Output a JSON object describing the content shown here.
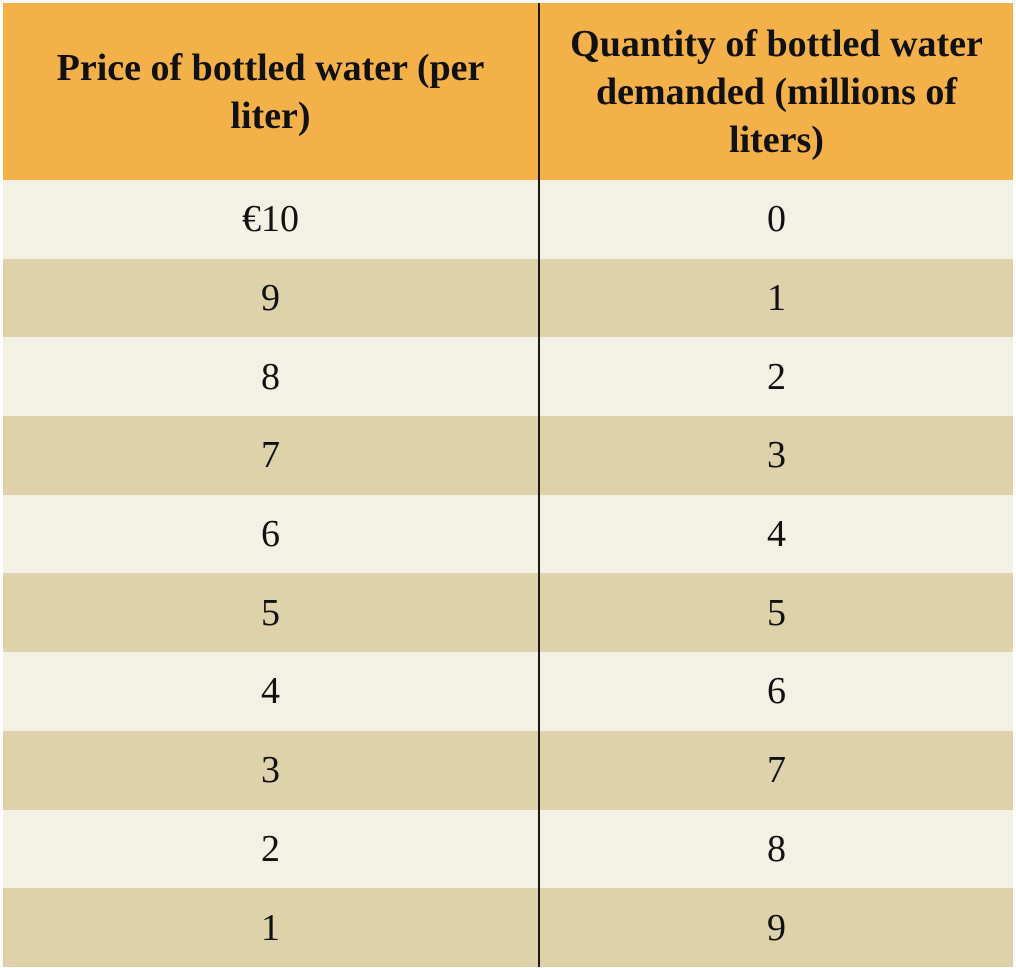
{
  "table": {
    "headers": {
      "price": "Price of bottled water (per liter)",
      "quantity": "Quantity of bottled water demanded (millions of liters)"
    },
    "rows": [
      {
        "price": "€10",
        "quantity": "0"
      },
      {
        "price": "9",
        "quantity": "1"
      },
      {
        "price": "8",
        "quantity": "2"
      },
      {
        "price": "7",
        "quantity": "3"
      },
      {
        "price": "6",
        "quantity": "4"
      },
      {
        "price": "5",
        "quantity": "5"
      },
      {
        "price": "4",
        "quantity": "6"
      },
      {
        "price": "3",
        "quantity": "7"
      },
      {
        "price": "2",
        "quantity": "8"
      },
      {
        "price": "1",
        "quantity": "9"
      }
    ]
  },
  "colors": {
    "header_bg": "#f4b14a",
    "row_light": "#f3f1e4",
    "row_dark": "#dfd1aa",
    "divider": "#1a1a1a"
  }
}
